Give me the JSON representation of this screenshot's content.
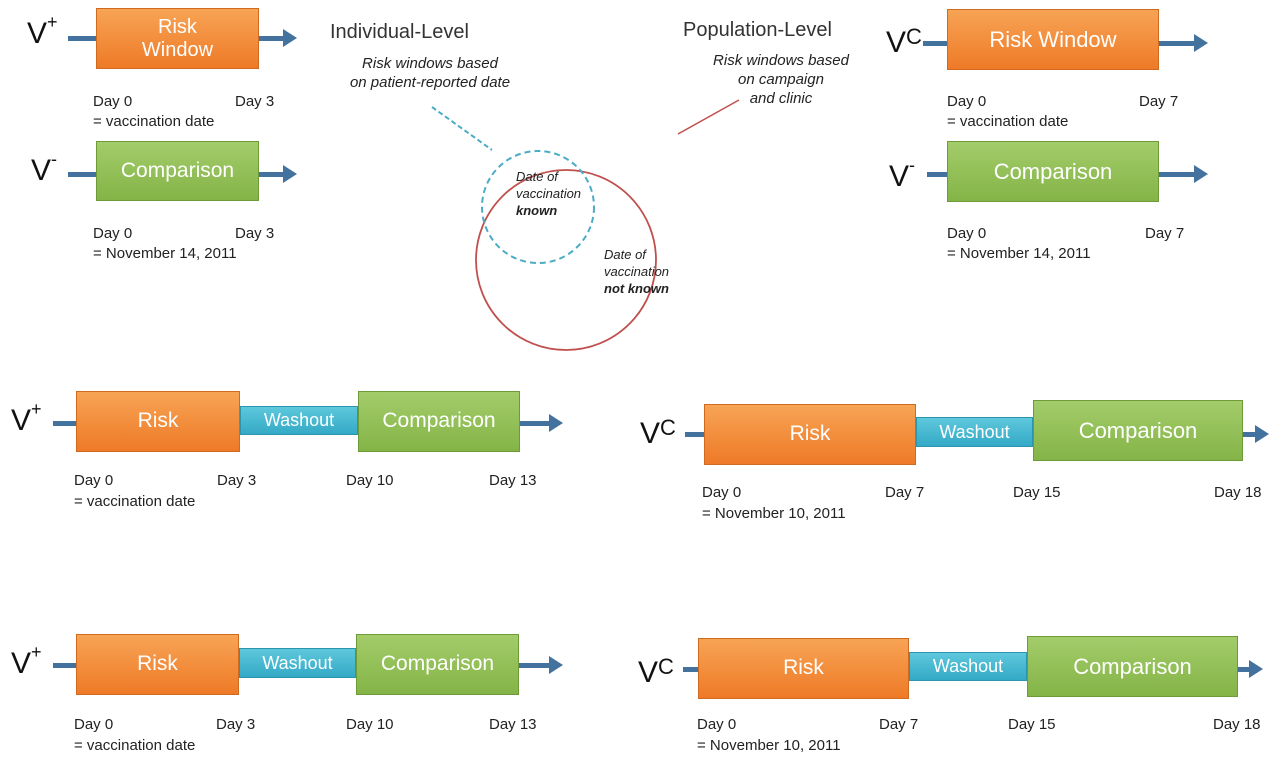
{
  "labels": {
    "vplus_base": "V",
    "vplus_sup": "+",
    "vminus_base": "V",
    "vminus_sup": "-",
    "vc_base": "V",
    "vc_sup": "C"
  },
  "boxes": {
    "risk_window_two_line_1": "Risk",
    "risk_window_two_line_2": "Window",
    "risk_window": "Risk Window",
    "comparison": "Comparison",
    "risk": "Risk",
    "washout": "Washout"
  },
  "days": {
    "day0": "Day 0",
    "day3": "Day 3",
    "day7": "Day 7",
    "day10": "Day 10",
    "day13": "Day 13",
    "day15": "Day 15",
    "day18": "Day 18",
    "vaccination_date": "= vaccination date",
    "nov14": "= November 14, 2011",
    "nov10": "= November 10, 2011"
  },
  "center": {
    "individual_title": "Individual-Level",
    "individual_note_1": "Risk windows based",
    "individual_note_2": "on patient-reported date",
    "population_title": "Population-Level",
    "population_note_1": "Risk windows based",
    "population_note_2": "on campaign",
    "population_note_3": "and clinic",
    "known_1": "Date of",
    "known_2": "vaccination",
    "known_3": "known",
    "notknown_1": "Date of",
    "notknown_2": "vaccination",
    "notknown_3": "not known"
  },
  "colors": {
    "risk": "#ee7a27",
    "comparison": "#84b447",
    "washout": "#34a9c6",
    "arrow": "#44729f",
    "outer_circle": "#c0504d",
    "inner_circle": "#4bacc6"
  }
}
